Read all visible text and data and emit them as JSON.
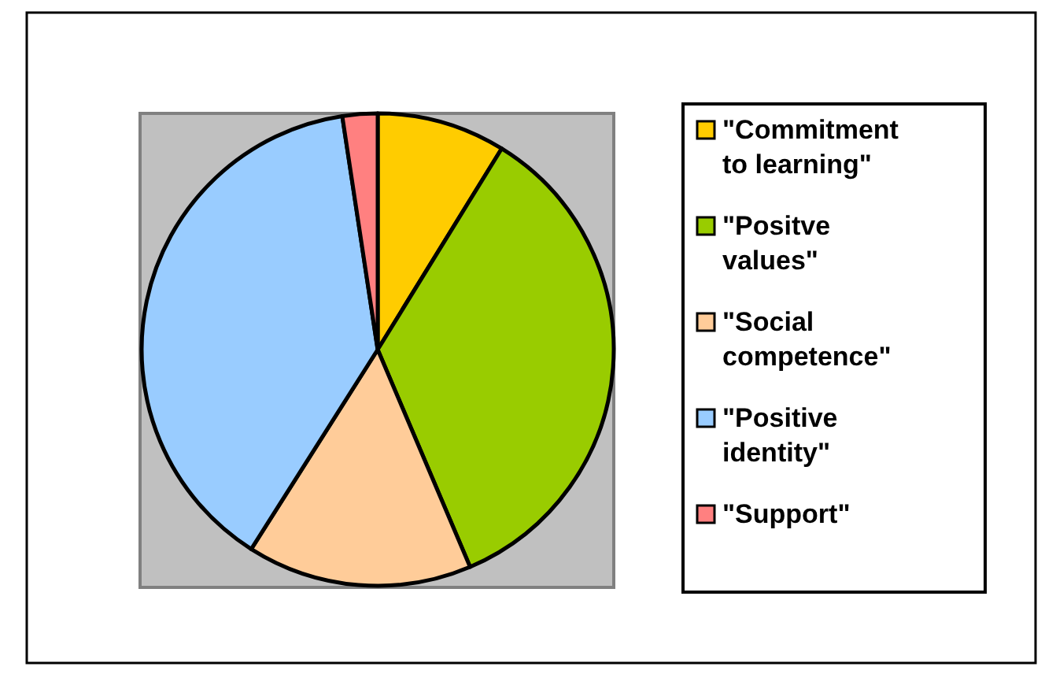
{
  "chart_data": {
    "type": "pie",
    "categories": [
      "\"Commitment to learning\"",
      "\"Positve values\"",
      "\"Social competence\"",
      "\"Positive identity\"",
      "\"Support\""
    ],
    "values": [
      8.8,
      34.8,
      15.4,
      38.6,
      2.4
    ],
    "colors": [
      "#ffcc00",
      "#99cc00",
      "#ffcc99",
      "#99ccff",
      "#ff8080"
    ],
    "legend": "right"
  }
}
